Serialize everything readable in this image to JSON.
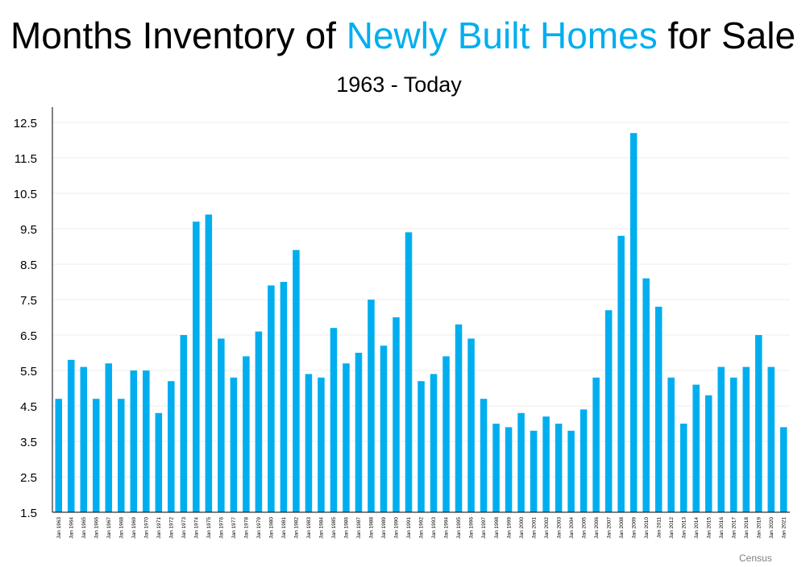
{
  "header": {
    "title_part1": "Months Inventory of ",
    "title_highlight": "Newly Built Homes",
    "title_part2": " for Sale",
    "subtitle": "1963 - Today"
  },
  "source": "Census",
  "colors": {
    "bar": "#00aeef",
    "highlight_text": "#00aeef",
    "grid": "#eeeeee",
    "axis": "#000000",
    "tick_text": "#000000",
    "source_text": "#7f7f7f"
  },
  "chart_data": {
    "type": "bar",
    "title": "Months Inventory of Newly Built Homes for Sale",
    "subtitle": "1963 - Today",
    "xlabel": "",
    "ylabel": "",
    "ylim": [
      1.5,
      13.0
    ],
    "yticks": [
      "12.5",
      "11.5",
      "10.5",
      "9.5",
      "8.5",
      "7.5",
      "6.5",
      "5.5",
      "4.5",
      "3.5",
      "2.5",
      "1.5"
    ],
    "grid": true,
    "legend": "none",
    "categories": [
      "Jan 1963",
      "Jan 1964",
      "Jan 1965",
      "Jan 1966",
      "Jan 1967",
      "Jan 1968",
      "Jan 1969",
      "Jan 1970",
      "Jan 1971",
      "Jan 1972",
      "Jan 1973",
      "Jan 1974",
      "Jan 1975",
      "Jan 1976",
      "Jan 1977",
      "Jan 1978",
      "Jan 1979",
      "Jan 1980",
      "Jan 1981",
      "Jan 1982",
      "Jan 1983",
      "Jan 1984",
      "Jan 1985",
      "Jan 1986",
      "Jan 1987",
      "Jan 1988",
      "Jan 1989",
      "Jan 1990",
      "Jan 1991",
      "Jan 1992",
      "Jan 1993",
      "Jan 1994",
      "Jan 1995",
      "Jan 1996",
      "Jan 1997",
      "Jan 1998",
      "Jan 1999",
      "Jan 2000",
      "Jan 2001",
      "Jan 2002",
      "Jan 2003",
      "Jan 2004",
      "Jan 2005",
      "Jan 2006",
      "Jan 2007",
      "Jan 2008",
      "Jan 2009",
      "Jan 2010",
      "Jan 2011",
      "Jan 2012",
      "Jan 2013",
      "Jan 2014",
      "Jan 2015",
      "Jan 2016",
      "Jan 2017",
      "Jan 2018",
      "Jan 2019",
      "Jan 2020",
      "Jan 2021"
    ],
    "values": [
      4.7,
      5.8,
      5.6,
      4.7,
      5.7,
      4.7,
      5.5,
      5.5,
      4.3,
      5.2,
      6.5,
      9.7,
      9.9,
      6.4,
      5.3,
      5.9,
      6.6,
      7.9,
      8.0,
      8.9,
      5.4,
      5.3,
      6.7,
      5.7,
      6.0,
      7.5,
      6.2,
      7.0,
      9.4,
      5.2,
      5.4,
      5.9,
      6.8,
      6.4,
      4.7,
      4.0,
      3.9,
      4.3,
      3.8,
      4.2,
      4.0,
      3.8,
      4.4,
      5.3,
      7.2,
      9.3,
      12.2,
      8.1,
      7.3,
      5.3,
      4.0,
      5.1,
      4.8,
      5.6,
      5.3,
      5.6,
      6.5,
      5.6,
      3.9
    ]
  }
}
